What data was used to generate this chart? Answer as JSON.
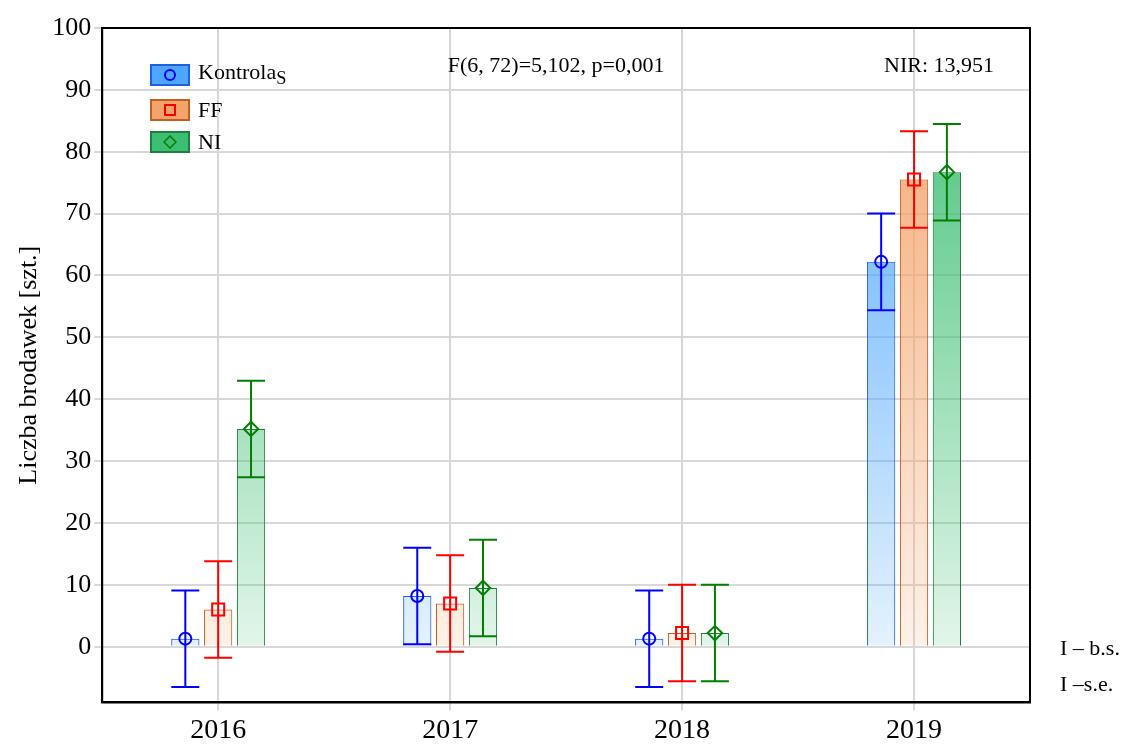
{
  "chart_data": {
    "type": "bar",
    "ylabel": "Liczba brodawek [szt.]",
    "categories": [
      "2016",
      "2017",
      "2018",
      "2019"
    ],
    "series": [
      {
        "name": "Kontrola$_{S}$",
        "color": "#4da6ff",
        "values": [
          1.3,
          8.2,
          1.3,
          62.2
        ]
      },
      {
        "name": "FF",
        "color": "#f5a36a",
        "values": [
          6.0,
          7.0,
          2.2,
          75.5
        ]
      },
      {
        "name": "NI",
        "color": "#3cbf72",
        "values": [
          35.2,
          9.5,
          2.2,
          76.7
        ]
      },
      {
        "type": "scatter",
        "color": "#0000ff",
        "marker": "circle",
        "values": [
          1.3,
          8.2,
          1.3,
          62.2
        ],
        "errors": [
          7.8,
          7.8,
          7.8,
          7.8
        ]
      },
      {
        "type": "scatter",
        "color": "#ff0000",
        "marker": "square",
        "values": [
          6.0,
          7.0,
          2.2,
          75.5
        ],
        "errors": [
          7.8,
          7.8,
          7.8,
          7.8
        ]
      },
      {
        "type": "scatter",
        "color": "#008000",
        "marker": "diamond",
        "values": [
          35.2,
          9.5,
          2.2,
          76.7
        ],
        "errors": [
          7.8,
          7.8,
          7.8,
          7.8
        ]
      }
    ],
    "ylim": [
      -9,
      100
    ],
    "yticks": [
      0,
      10,
      20,
      30,
      40,
      50,
      60,
      70,
      80,
      90,
      100
    ],
    "grid": true,
    "legend": "top left",
    "annotations": [
      "F(6, 72)=5,102, p=0,001",
      "NIR: 13,951",
      "I – b.s.",
      "I –s.e."
    ]
  }
}
